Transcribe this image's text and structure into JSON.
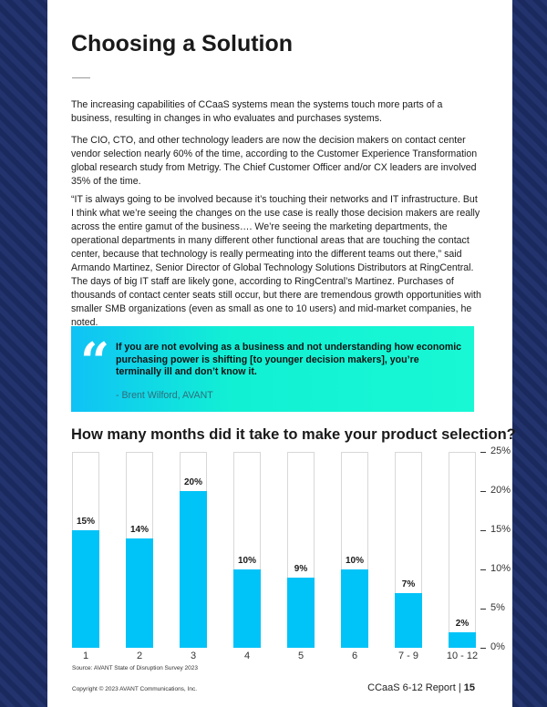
{
  "title": "Choosing a Solution",
  "paragraphs": [
    "The increasing capabilities of CCaaS systems mean the systems touch more parts of a business, resulting in changes in who evaluates and purchases systems.",
    "The CIO, CTO, and other technology leaders are now the decision makers on contact center vendor selection nearly 60% of the time, according to the Customer Experience Transformation global research study from Metrigy. The Chief Customer Officer and/or CX leaders are involved 35% of the time.",
    "“IT is always going to be involved because it’s touching their networks and IT infrastructure. But I think what we’re seeing the changes on the use case is really those decision makers are really across the entire gamut of the business…. We’re seeing the marketing departments, the operational departments in many different other functional areas that are touching the contact center, because that technology is really permeating into the different teams out there,” said Armando Martinez, Senior Director of Global Technology Solutions Distributors at RingCentral.",
    "The days of big IT staff are likely gone, according to RingCentral’s Martinez. Purchases of thousands of contact center seats still occur, but there are tremendous growth opportunities with smaller SMB organizations (even as small as one to 10 users) and mid-market companies, he noted."
  ],
  "quote": {
    "mark": "“",
    "text": "If you are not evolving as a business and not understanding how economic purchasing power is shifting [to younger decision makers], you’re terminally ill and don’t know it.",
    "attribution": "- Brent Wilford, AVANT"
  },
  "chart_data": {
    "type": "bar",
    "title": "How many months did it take to make your product selection?",
    "categories": [
      "1",
      "2",
      "3",
      "4",
      "5",
      "6",
      "7 - 9",
      "10 - 12"
    ],
    "values": [
      15,
      14,
      20,
      10,
      9,
      10,
      7,
      2
    ],
    "data_labels": [
      "15%",
      "14%",
      "20%",
      "10%",
      "9%",
      "10%",
      "7%",
      "2%"
    ],
    "ylim": [
      0,
      25
    ],
    "yticks": [
      "0%",
      "5%",
      "10%",
      "15%",
      "20%",
      "25%"
    ],
    "ytick_values": [
      0,
      5,
      10,
      15,
      20,
      25
    ],
    "y_axis_side": "right",
    "bar_color": "#00c3f8",
    "grid": false
  },
  "source": "Source: AVANT State of Disruption Survey 2023",
  "footer": {
    "copyright": "Copyright © 2023 AVANT Communications, Inc.",
    "report": "CCaaS 6-12 Report",
    "separator": "|",
    "page": "15"
  }
}
